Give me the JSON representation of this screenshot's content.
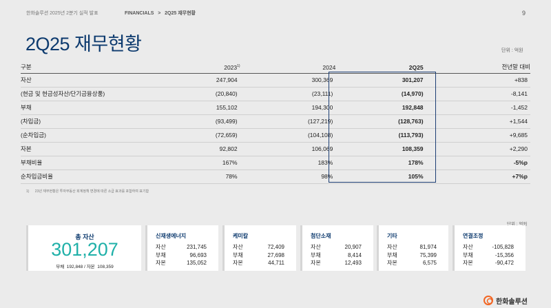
{
  "header": {
    "left": "한화솔루션 2025년 2분기 실적 발표",
    "crumb": "FINANCIALS   >   2Q25 재무현황",
    "page": "9"
  },
  "title": "2Q25 재무현황",
  "unit": "단위 : 억원",
  "table": {
    "columns": [
      "구분",
      "2023",
      "2024",
      "2Q25",
      "전년말 대비"
    ],
    "footnote_mark": "1)",
    "rows": [
      [
        "자산",
        "247,904",
        "300,369",
        "301,207",
        "+838"
      ],
      [
        "(현금 및 현금성자산/단기금융상품)",
        "(20,840)",
        "(23,111)",
        "(14,970)",
        "-8,141"
      ],
      [
        "부채",
        "155,102",
        "194,300",
        "192,848",
        "-1,452"
      ],
      [
        "(차입금)",
        "(93,499)",
        "(127,219)",
        "(128,763)",
        "+1,544"
      ],
      [
        "(순차입금)",
        "(72,659)",
        "(104,108)",
        "(113,793)",
        "+9,685"
      ],
      [
        "자본",
        "92,802",
        "106,069",
        "108,359",
        "+2,290"
      ],
      [
        "부채비율",
        "167%",
        "183%",
        "178%",
        "-5%p"
      ],
      [
        "순차입금비율",
        "78%",
        "98%",
        "105%",
        "+7%p"
      ]
    ]
  },
  "footnote": {
    "mark": "1)",
    "text": "23년 재무현황은 투자부동산 회계정책 변경에 따른 소급 효과를 포함하여 표기함"
  },
  "total": {
    "title": "총 자산",
    "value": "301,207",
    "sub": "부채  192,848 / 자본  108,359"
  },
  "segments": [
    {
      "name": "신재생에너지",
      "rows": [
        [
          "자산",
          "231,745"
        ],
        [
          "부채",
          "96,693"
        ],
        [
          "자본",
          "135,052"
        ]
      ]
    },
    {
      "name": "케미칼",
      "rows": [
        [
          "자산",
          "72,409"
        ],
        [
          "부채",
          "27,698"
        ],
        [
          "자본",
          "44,711"
        ]
      ]
    },
    {
      "name": "첨단소재",
      "rows": [
        [
          "자산",
          "20,907"
        ],
        [
          "부채",
          "8,414"
        ],
        [
          "자본",
          "12,493"
        ]
      ]
    },
    {
      "name": "기타",
      "rows": [
        [
          "자산",
          "81,974"
        ],
        [
          "부채",
          "75,399"
        ],
        [
          "자본",
          "6,575"
        ]
      ]
    },
    {
      "name": "연결조정",
      "rows": [
        [
          "자산",
          "-105,828"
        ],
        [
          "부채",
          "-15,356"
        ],
        [
          "자본",
          "-90,472"
        ]
      ]
    }
  ],
  "logo": "한화솔루션",
  "colors": {
    "navy": "#0d3a6e",
    "teal": "#1fb0a8",
    "logo": "#f26522"
  }
}
